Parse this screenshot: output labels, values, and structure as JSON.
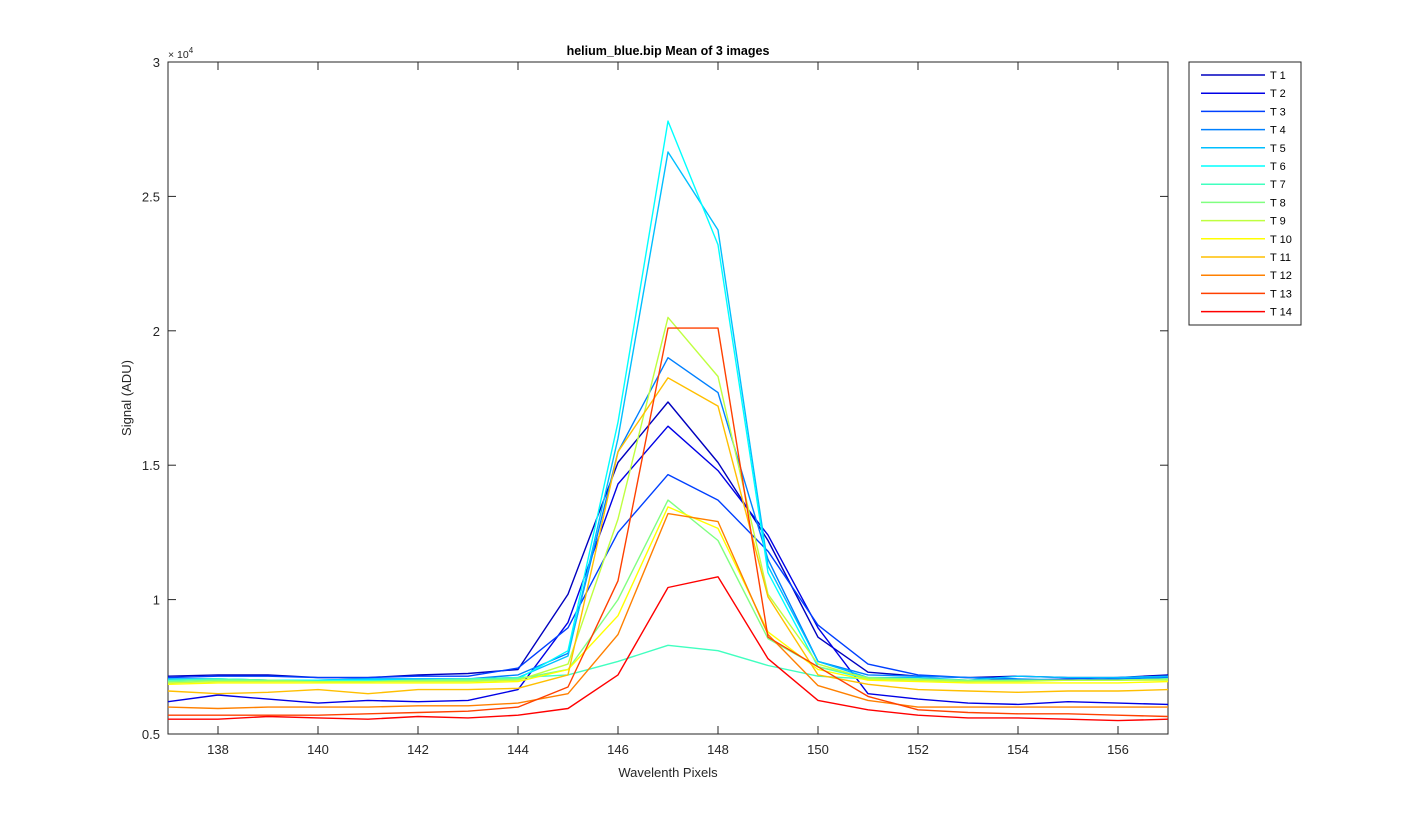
{
  "chart_data": {
    "type": "line",
    "title": "helium_blue.bip  Mean of 3 images",
    "xlabel": "Wavelenth Pixels",
    "ylabel": "Signal (ADU)",
    "exponent_base": "× 10",
    "exponent_power": "4",
    "xlim": [
      137,
      157
    ],
    "ylim": [
      0.5,
      3
    ],
    "xticks": [
      138,
      140,
      142,
      144,
      146,
      148,
      150,
      152,
      154,
      156
    ],
    "yticks": [
      0.5,
      1,
      1.5,
      2,
      2.5,
      3
    ],
    "ytick_labels": [
      "0.5",
      "1",
      "1.5",
      "2",
      "2.5",
      "3"
    ],
    "grid": false,
    "legend_position": "outside-top-right",
    "x": [
      137,
      138,
      139,
      140,
      141,
      142,
      143,
      144,
      145,
      146,
      147,
      148,
      149,
      150,
      151,
      152,
      153,
      154,
      155,
      156,
      157
    ],
    "series": [
      {
        "name": "T 1",
        "color": "#0000bf",
        "values": [
          0.715,
          0.72,
          0.72,
          0.71,
          0.71,
          0.72,
          0.725,
          0.74,
          1.02,
          1.51,
          1.735,
          1.51,
          1.22,
          0.86,
          0.73,
          0.715,
          0.71,
          0.715,
          0.71,
          0.71,
          0.72
        ]
      },
      {
        "name": "T 2",
        "color": "#0000e6",
        "values": [
          0.62,
          0.645,
          0.63,
          0.615,
          0.625,
          0.62,
          0.625,
          0.665,
          0.915,
          1.43,
          1.645,
          1.48,
          1.24,
          0.895,
          0.65,
          0.63,
          0.615,
          0.61,
          0.62,
          0.615,
          0.61
        ]
      },
      {
        "name": "T 3",
        "color": "#0040ff",
        "values": [
          0.71,
          0.715,
          0.715,
          0.71,
          0.71,
          0.715,
          0.715,
          0.745,
          0.895,
          1.25,
          1.465,
          1.37,
          1.18,
          0.905,
          0.76,
          0.72,
          0.71,
          0.7,
          0.705,
          0.71,
          0.715
        ]
      },
      {
        "name": "T 4",
        "color": "#0080ff",
        "values": [
          0.705,
          0.705,
          0.7,
          0.7,
          0.705,
          0.705,
          0.705,
          0.72,
          0.8,
          1.55,
          1.9,
          1.77,
          1.15,
          0.77,
          0.72,
          0.715,
          0.71,
          0.705,
          0.7,
          0.705,
          0.71
        ]
      },
      {
        "name": "T 5",
        "color": "#00bfff",
        "values": [
          0.705,
          0.705,
          0.7,
          0.7,
          0.705,
          0.705,
          0.705,
          0.71,
          0.79,
          1.6,
          2.665,
          2.375,
          1.125,
          0.77,
          0.71,
          0.71,
          0.7,
          0.715,
          0.71,
          0.71,
          0.715
        ]
      },
      {
        "name": "T 6",
        "color": "#00ffff",
        "values": [
          0.695,
          0.7,
          0.7,
          0.7,
          0.7,
          0.7,
          0.7,
          0.705,
          0.81,
          1.66,
          2.78,
          2.32,
          1.1,
          0.75,
          0.705,
          0.7,
          0.695,
          0.7,
          0.7,
          0.7,
          0.705
        ]
      },
      {
        "name": "T 7",
        "color": "#40ffbf",
        "values": [
          0.7,
          0.705,
          0.7,
          0.695,
          0.695,
          0.7,
          0.705,
          0.71,
          0.72,
          0.77,
          0.83,
          0.81,
          0.755,
          0.715,
          0.705,
          0.7,
          0.7,
          0.7,
          0.7,
          0.7,
          0.705
        ]
      },
      {
        "name": "T 8",
        "color": "#80ff80",
        "values": [
          0.695,
          0.7,
          0.7,
          0.695,
          0.695,
          0.7,
          0.7,
          0.705,
          0.74,
          1.0,
          1.37,
          1.22,
          0.855,
          0.75,
          0.71,
          0.705,
          0.7,
          0.7,
          0.7,
          0.7,
          0.705
        ]
      },
      {
        "name": "T 9",
        "color": "#bfff40",
        "values": [
          0.69,
          0.695,
          0.695,
          0.695,
          0.695,
          0.695,
          0.695,
          0.7,
          0.76,
          1.3,
          2.05,
          1.83,
          1.02,
          0.76,
          0.705,
          0.7,
          0.695,
          0.695,
          0.7,
          0.7,
          0.7
        ]
      },
      {
        "name": "T 10",
        "color": "#ffff00",
        "values": [
          0.685,
          0.69,
          0.69,
          0.69,
          0.69,
          0.69,
          0.69,
          0.695,
          0.74,
          0.94,
          1.345,
          1.265,
          0.88,
          0.74,
          0.7,
          0.695,
          0.69,
          0.69,
          0.69,
          0.69,
          0.695
        ]
      },
      {
        "name": "T 11",
        "color": "#ffbf00",
        "values": [
          0.66,
          0.65,
          0.655,
          0.665,
          0.65,
          0.665,
          0.665,
          0.67,
          0.72,
          1.55,
          1.825,
          1.72,
          1.01,
          0.72,
          0.685,
          0.665,
          0.66,
          0.655,
          0.66,
          0.66,
          0.665
        ]
      },
      {
        "name": "T 12",
        "color": "#ff8000",
        "values": [
          0.6,
          0.595,
          0.6,
          0.6,
          0.6,
          0.605,
          0.605,
          0.615,
          0.65,
          0.87,
          1.32,
          1.29,
          0.87,
          0.68,
          0.625,
          0.6,
          0.6,
          0.6,
          0.6,
          0.6,
          0.6
        ]
      },
      {
        "name": "T 13",
        "color": "#ff4000",
        "values": [
          0.57,
          0.57,
          0.57,
          0.57,
          0.575,
          0.58,
          0.585,
          0.6,
          0.675,
          1.07,
          2.01,
          2.01,
          0.86,
          0.75,
          0.64,
          0.59,
          0.58,
          0.575,
          0.575,
          0.57,
          0.565
        ]
      },
      {
        "name": "T 14",
        "color": "#ff0000",
        "values": [
          0.555,
          0.555,
          0.565,
          0.56,
          0.555,
          0.565,
          0.56,
          0.57,
          0.595,
          0.72,
          1.045,
          1.085,
          0.78,
          0.625,
          0.59,
          0.57,
          0.56,
          0.56,
          0.555,
          0.55,
          0.555
        ]
      }
    ]
  }
}
